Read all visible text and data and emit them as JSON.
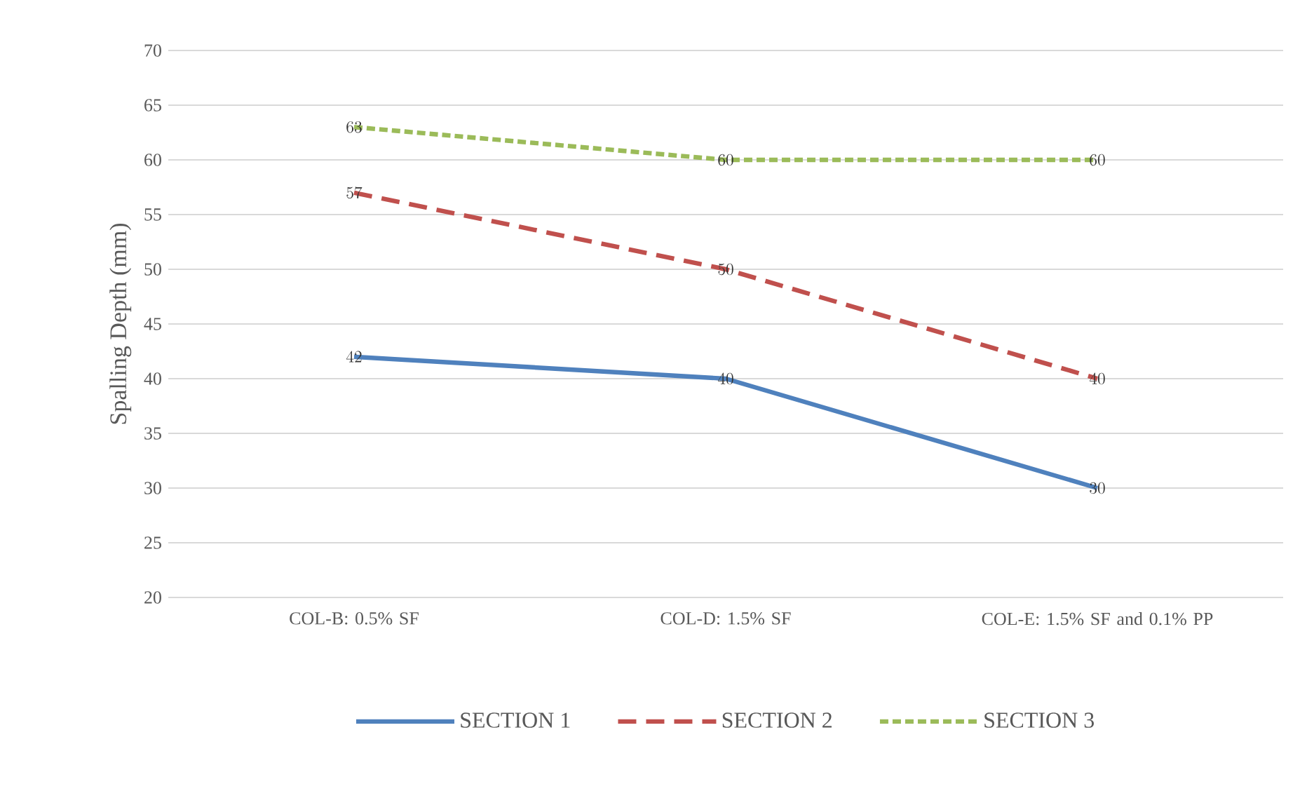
{
  "chart_data": {
    "type": "line",
    "ylabel": "Spalling Depth (mm)",
    "categories": [
      "COL-B: 0.5% SF",
      "COL-D: 1.5% SF",
      "COL-E: 1.5% SF and 0.1% PP"
    ],
    "series": [
      {
        "name": "SECTION 1",
        "color": "#4f81bd",
        "line_style": "solid",
        "values": [
          42,
          40,
          30
        ]
      },
      {
        "name": "SECTION 2",
        "color": "#c0504d",
        "line_style": "dashed",
        "values": [
          57,
          50,
          40
        ]
      },
      {
        "name": "SECTION 3",
        "color": "#9bbb59",
        "line_style": "dotted",
        "values": [
          63,
          60,
          60
        ]
      }
    ],
    "ylim": [
      20,
      70
    ],
    "yticks": [
      20,
      25,
      30,
      35,
      40,
      45,
      50,
      55,
      60,
      65,
      70
    ],
    "grid": "y",
    "legend": "bottom",
    "marker": "none",
    "data_labels": true
  }
}
